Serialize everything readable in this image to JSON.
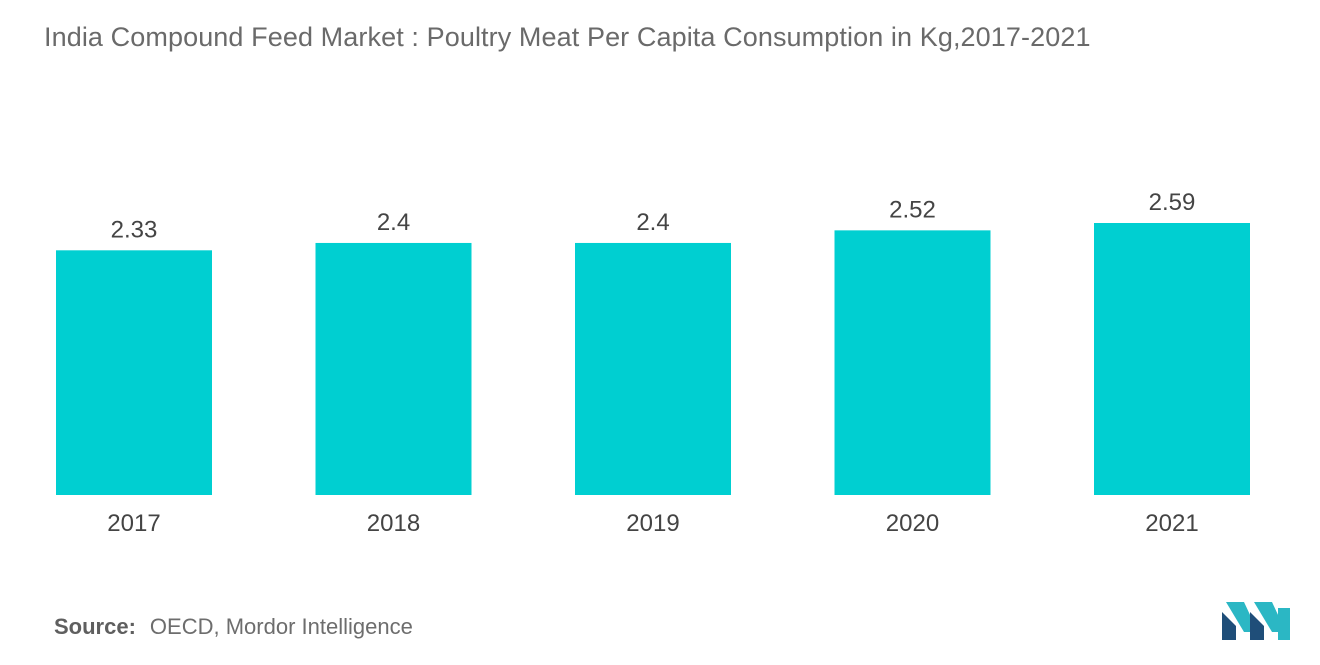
{
  "title": "India Compound Feed Market : Poultry Meat Per Capita Consumption in Kg,2017-2021",
  "source": {
    "label": "Source:",
    "text": "OECD, Mordor Intelligence"
  },
  "chart_data": {
    "type": "bar",
    "title": "India Compound Feed Market : Poultry Meat Per Capita Consumption in Kg,2017-2021",
    "categories": [
      "2017",
      "2018",
      "2019",
      "2020",
      "2021"
    ],
    "values": [
      2.33,
      2.4,
      2.4,
      2.52,
      2.59
    ],
    "data_labels": [
      "2.33",
      "2.4",
      "2.4",
      "2.52",
      "2.59"
    ],
    "xlabel": "",
    "ylabel": "",
    "grid": false,
    "legend": "none",
    "bar_color": "#00cfd1"
  },
  "colors": {
    "bar": "#00cfd1",
    "text": "#444444",
    "title": "#6a6a6a",
    "logo_dark": "#1f4e79",
    "logo_light": "#2bb7c4"
  }
}
